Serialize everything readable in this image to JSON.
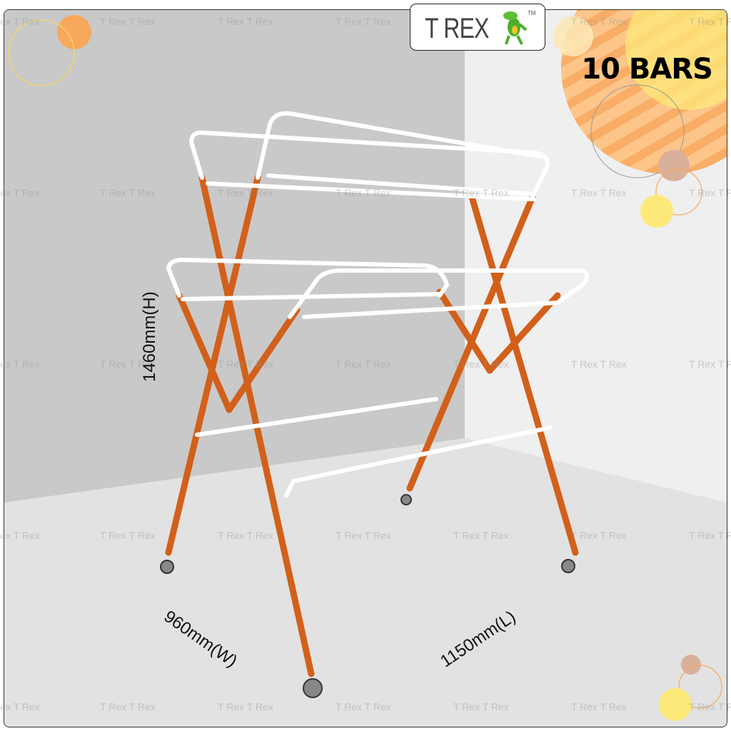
{
  "brand": {
    "logo_text": "T REX",
    "trademark": "TM",
    "mascot_icon": "green-dinosaur"
  },
  "badge": {
    "label": "10 BARS"
  },
  "watermark": "T Rex T Rex",
  "dimensions": {
    "height": "1460mm(H)",
    "width": "960mm(W)",
    "length": "1150mm(L)"
  },
  "colors": {
    "frame_orange": "#d2601a",
    "rail_white": "#ffffff",
    "accent_orange": "#f7a85a",
    "accent_yellow": "#fde97a"
  }
}
